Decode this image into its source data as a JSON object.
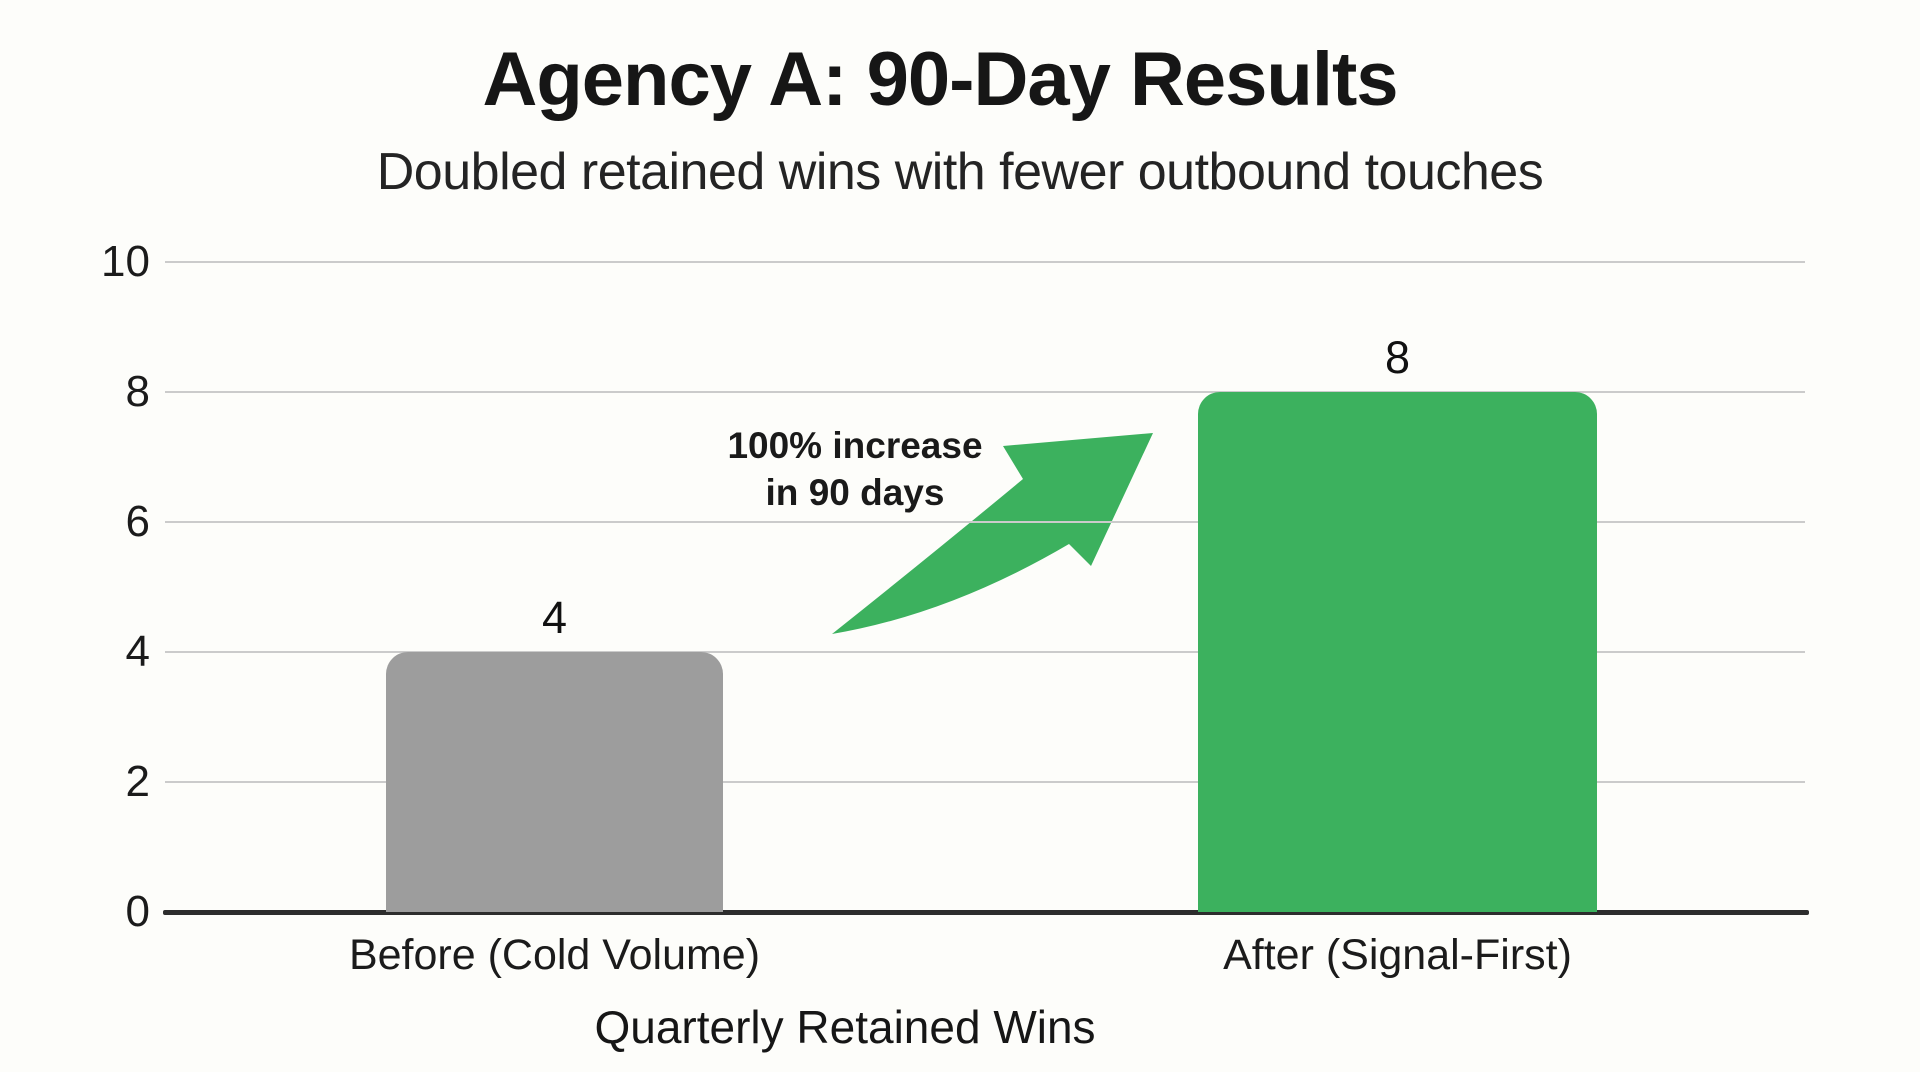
{
  "page": {
    "background_color": "#fdfdfa",
    "text_color": "#1b1b1b"
  },
  "chart_data": {
    "type": "bar",
    "title": "Agency A: 90-Day Results",
    "subtitle": "Doubled retained wins with fewer outbound touches",
    "x_axis_title": "Quarterly Retained Wins",
    "categories": [
      "Before (Cold Volume)",
      "After (Signal-First)"
    ],
    "values": [
      4,
      8
    ],
    "value_labels": [
      "4",
      "8"
    ],
    "series_colors": [
      "#9d9d9d",
      "#3cb15e"
    ],
    "yticks": [
      "0",
      "2",
      "4",
      "6",
      "8",
      "10"
    ],
    "ylim": [
      0,
      10
    ],
    "grid": true,
    "gridline_color": "#cbcbcb",
    "axis_color": "#2d2d2d",
    "legend": "none",
    "annotation": {
      "line1": "100% increase",
      "line2": "in 90 days",
      "arrow_color": "#3cb15e"
    }
  }
}
